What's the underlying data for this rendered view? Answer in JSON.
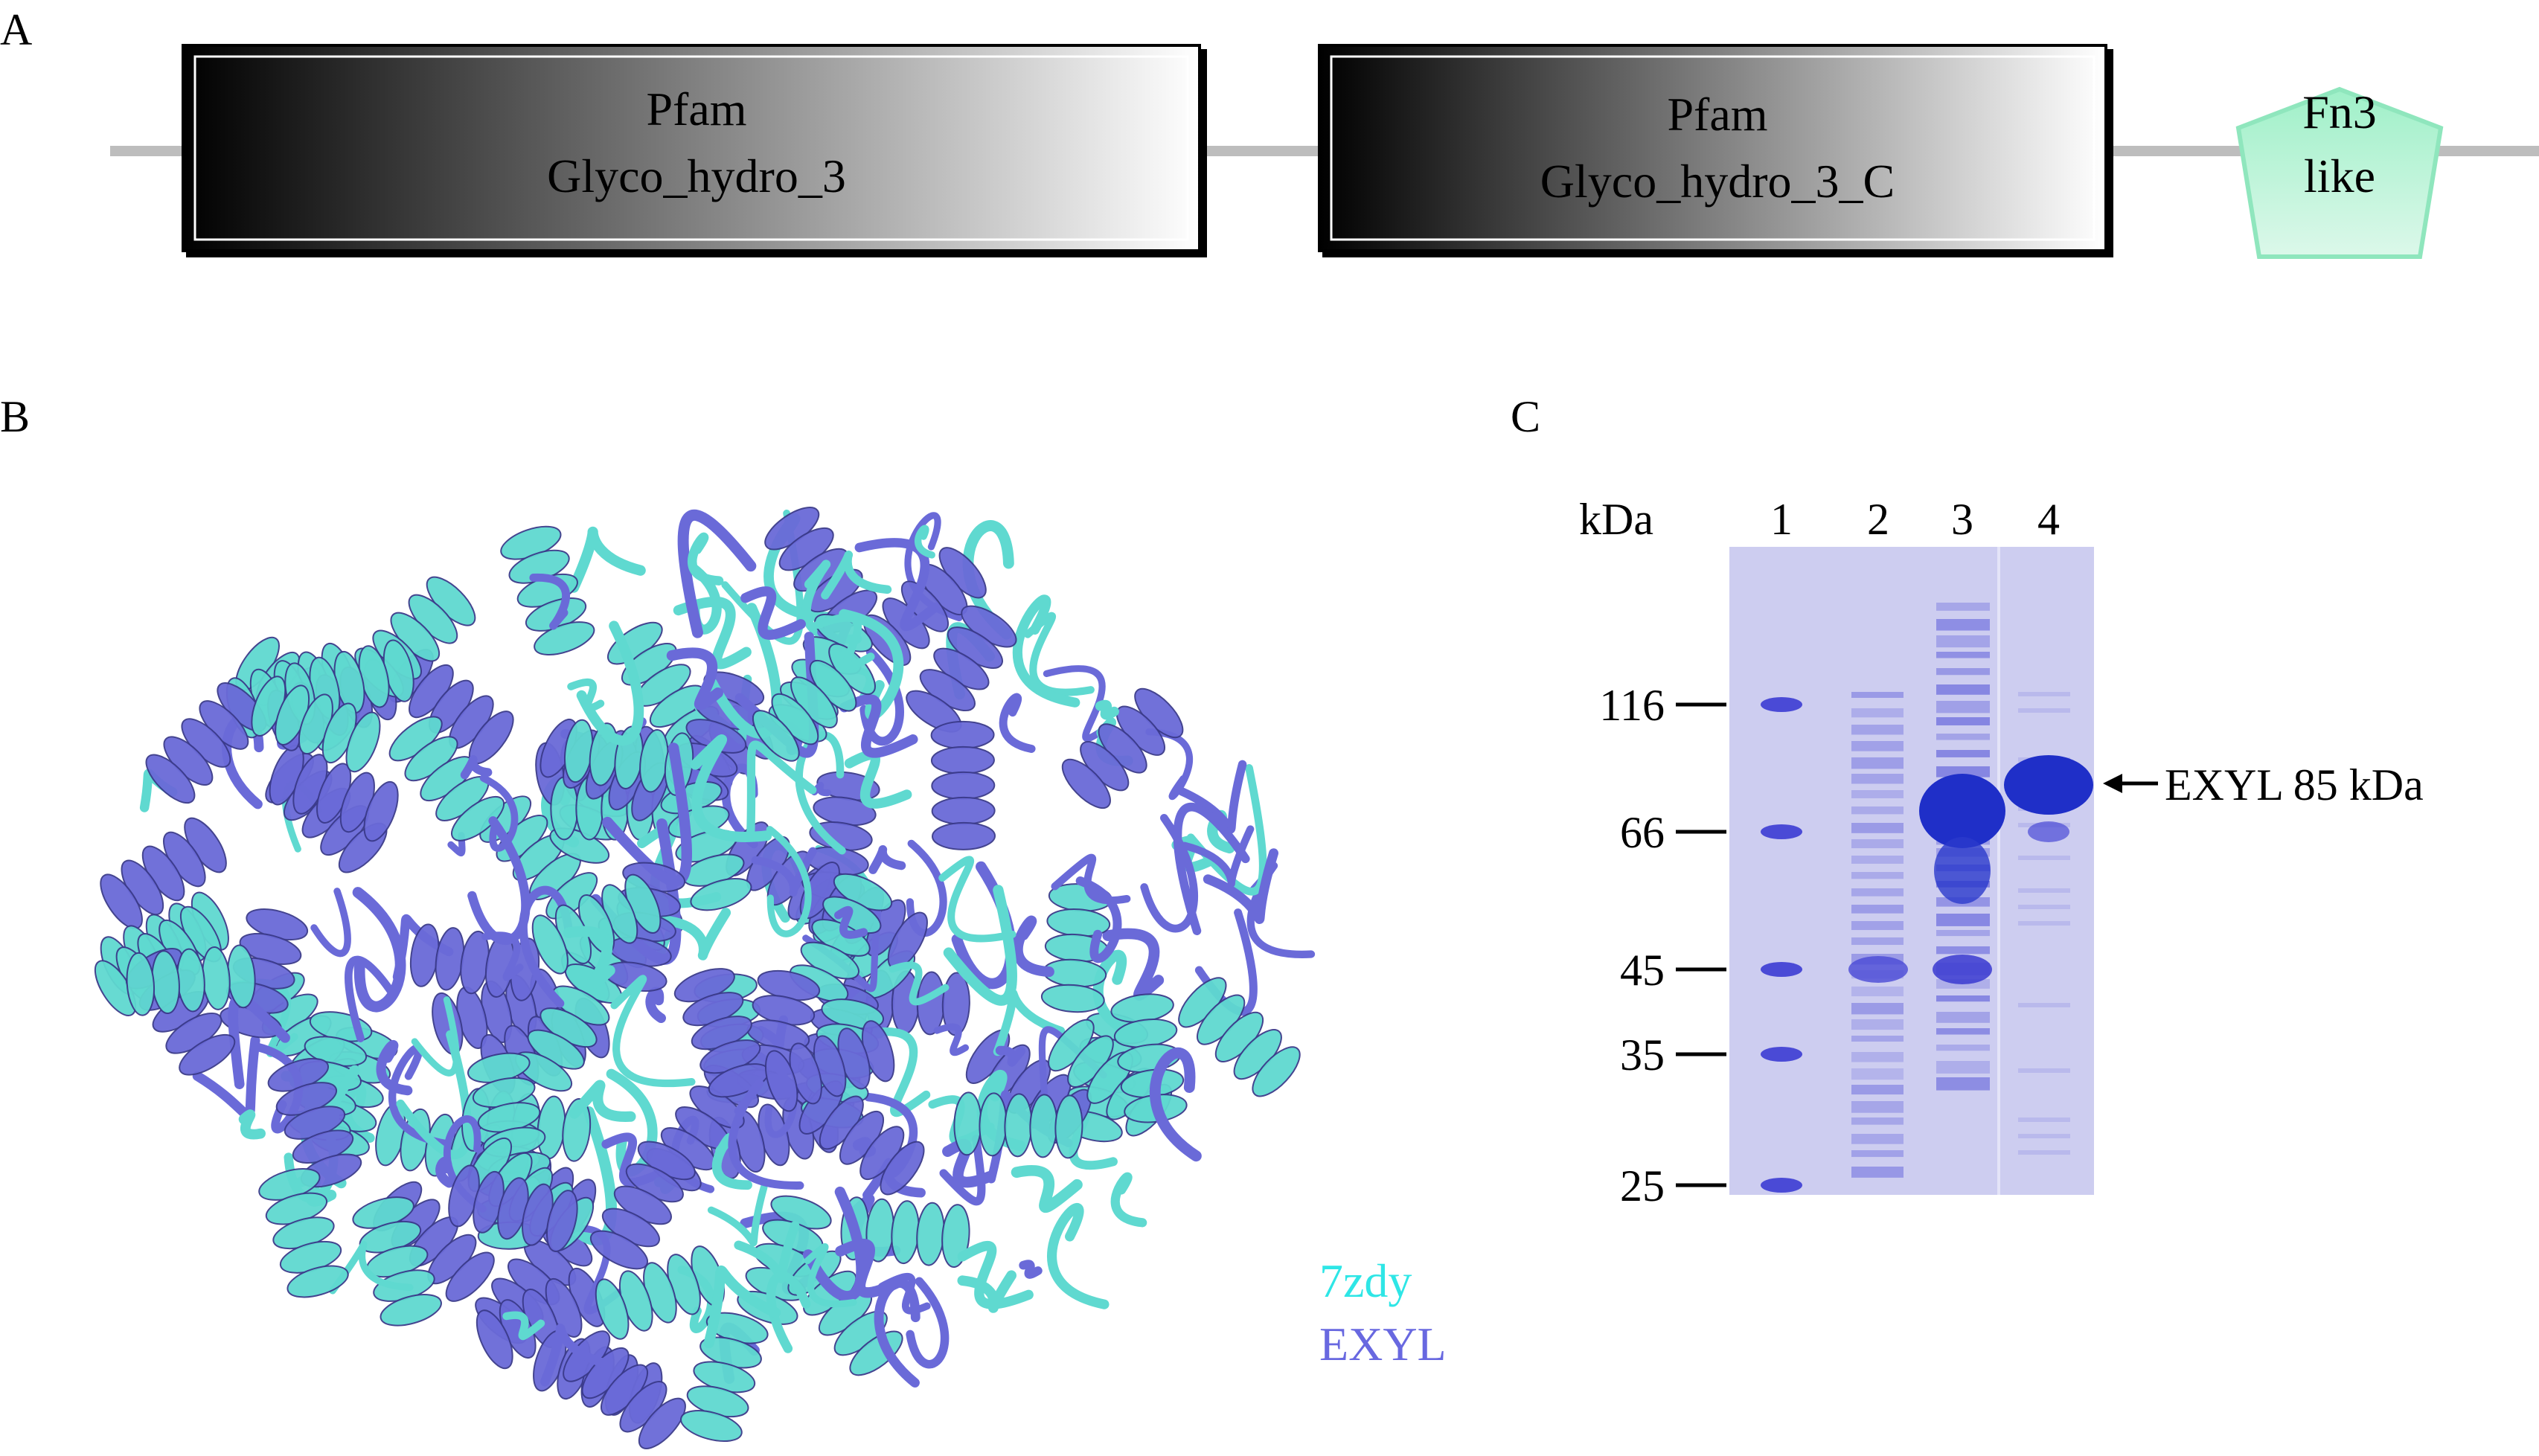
{
  "panels": {
    "a": {
      "label": "A",
      "domains": [
        {
          "line1": "Pfam",
          "line2": "Glyco_hydro_3"
        },
        {
          "line1": "Pfam",
          "line2": "Glyco_hydro_3_C"
        }
      ],
      "motif": {
        "line1": "Fn3",
        "line2": "like"
      }
    },
    "b": {
      "label": "B",
      "legend": [
        "7zdy",
        "EXYL"
      ]
    },
    "c": {
      "label": "C",
      "unit": "kDa",
      "lanes": [
        "1",
        "2",
        "3",
        "4"
      ],
      "markers": [
        "116",
        "66",
        "45",
        "35",
        "25"
      ],
      "annotation": "EXYL 85 kDa"
    }
  }
}
